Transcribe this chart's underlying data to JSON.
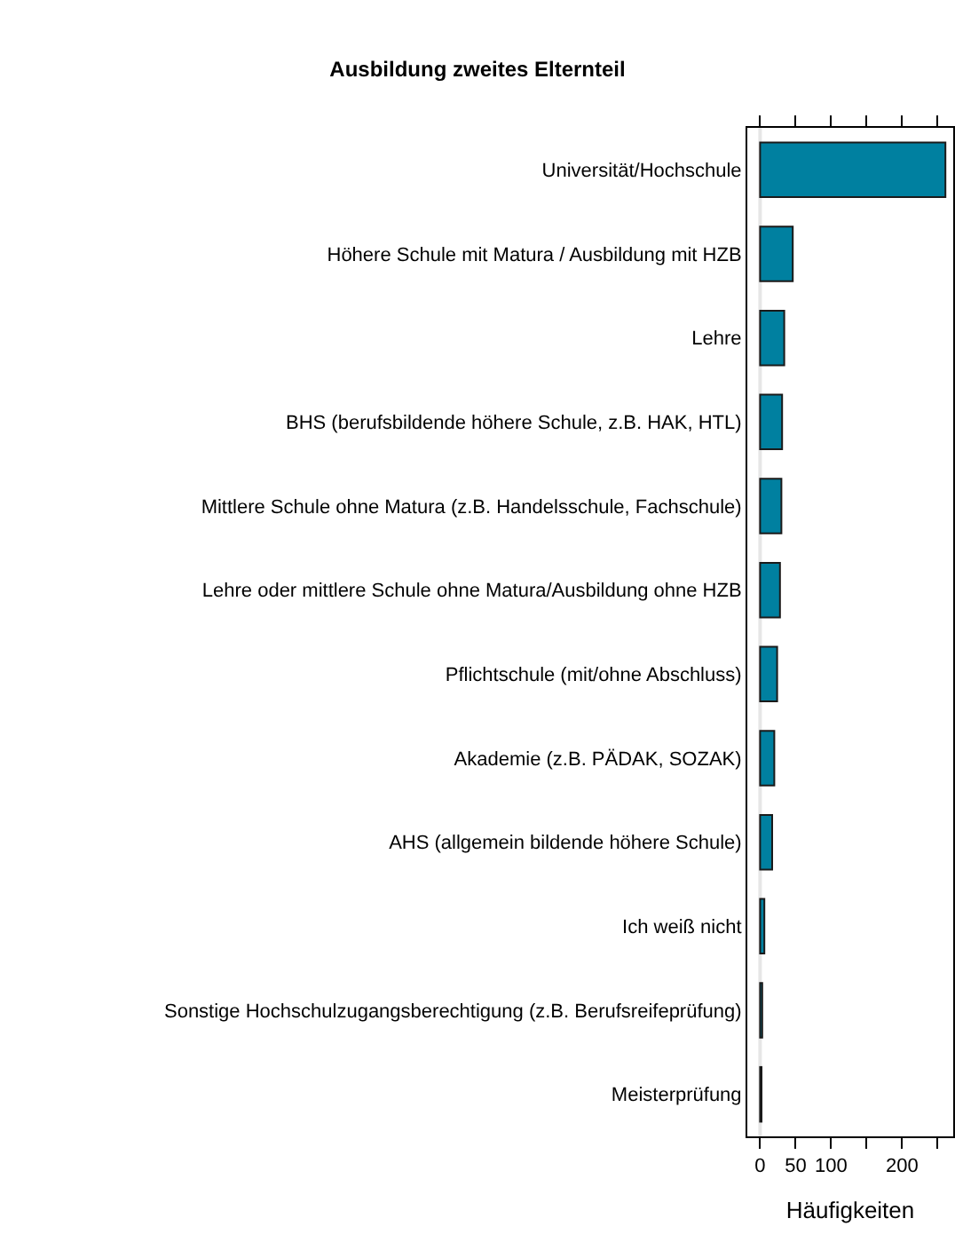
{
  "chart_data": {
    "type": "bar",
    "orientation": "horizontal",
    "title": "Ausbildung zweites Elternteil",
    "xlabel": "Häufigkeiten",
    "categories": [
      "Universität/Hochschule",
      "Höhere Schule mit Matura / Ausbildung mit HZB",
      "Lehre",
      "BHS (berufsbildende höhere Schule, z.B. HAK, HTL)",
      "Mittlere Schule ohne Matura (z.B. Handelsschule, Fachschule)",
      "Lehre oder mittlere Schule ohne Matura/Ausbildung ohne HZB",
      "Pflichtschule (mit/ohne Abschluss)",
      "Akademie (z.B. PÄDAK, SOZAK)",
      "AHS (allgemein bildende höhere Schule)",
      "Ich weiß nicht",
      "Sonstige Hochschulzugangsberechtigung (z.B. Berufsreifeprüfung)",
      "Meisterprüfung"
    ],
    "values": [
      261,
      46,
      34,
      31,
      30,
      28,
      24,
      20,
      17,
      6,
      3,
      2
    ],
    "color": "#0080a0",
    "xlim": [
      -18,
      272
    ],
    "xticks": [
      0,
      50,
      100,
      {
        "value": 150,
        "label": null
      },
      200,
      {
        "value": 250,
        "label": null
      }
    ],
    "ref_lines": [
      {
        "axis": "x",
        "value": 0,
        "color": "#e6e6e6"
      }
    ],
    "grid": false,
    "legend": false
  }
}
